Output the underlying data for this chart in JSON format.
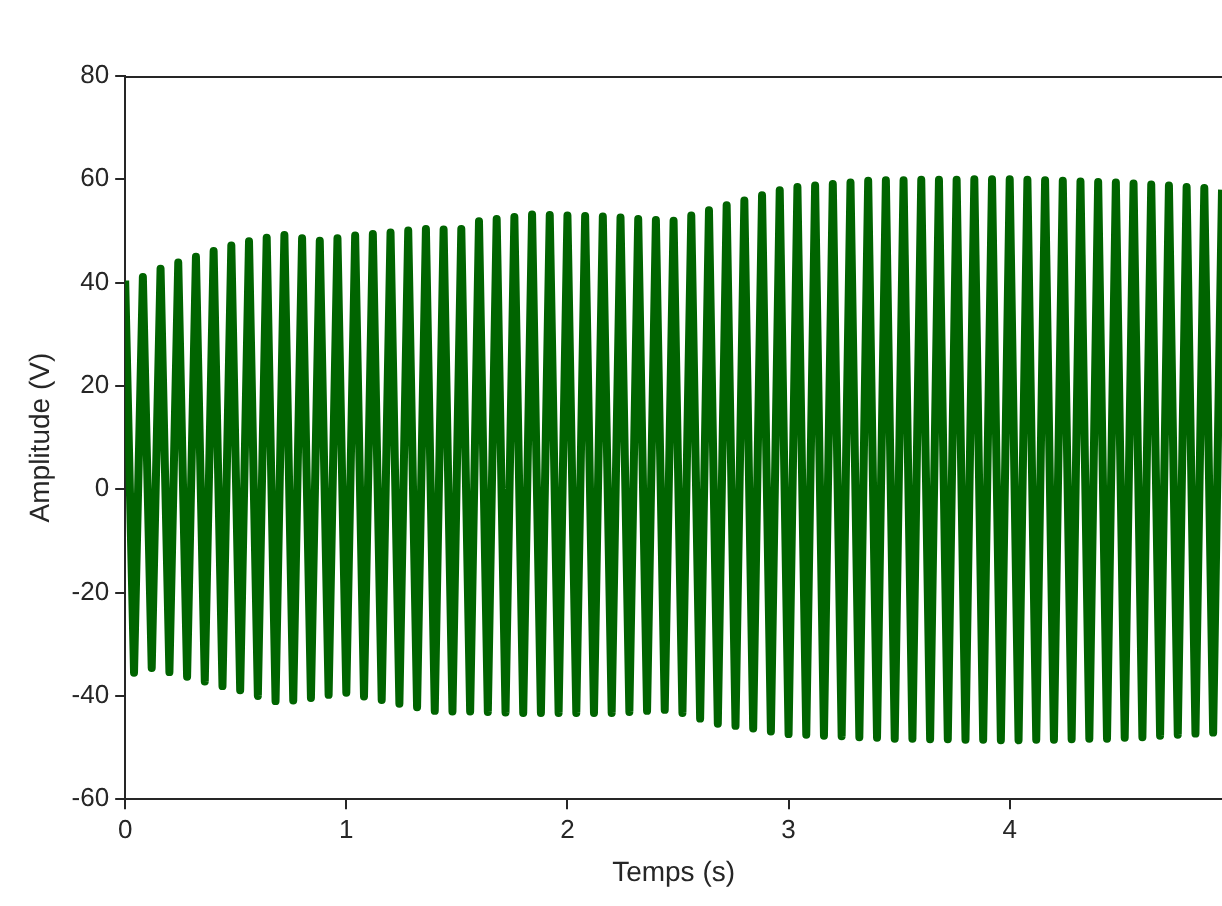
{
  "chart_data": {
    "type": "line",
    "xlabel": "Temps (s)",
    "ylabel": "Amplitude (V)",
    "xlim": [
      0,
      4.96
    ],
    "ylim": [
      -60,
      80
    ],
    "xticks": [
      0,
      1,
      2,
      3,
      4
    ],
    "yticks": [
      -60,
      -40,
      -20,
      0,
      20,
      40,
      60,
      80
    ],
    "x": [
      0,
      0.04,
      0.08,
      0.12,
      0.16,
      0.2,
      0.24,
      0.28,
      0.32,
      0.36,
      0.4,
      0.44,
      0.48,
      0.52,
      0.56,
      0.6,
      0.64,
      0.68,
      0.72,
      0.76,
      0.8,
      0.84,
      0.88,
      0.92,
      0.96,
      1,
      1.04,
      1.08,
      1.12,
      1.16,
      1.2,
      1.24,
      1.28,
      1.32,
      1.36,
      1.4,
      1.44,
      1.48,
      1.52,
      1.56,
      1.6,
      1.64,
      1.68,
      1.72,
      1.76,
      1.8,
      1.84,
      1.88,
      1.92,
      1.96,
      2,
      2.04,
      2.08,
      2.12,
      2.16,
      2.2,
      2.24,
      2.28,
      2.32,
      2.36,
      2.4,
      2.44,
      2.48,
      2.52,
      2.56,
      2.6,
      2.64,
      2.68,
      2.72,
      2.76,
      2.8,
      2.84,
      2.88,
      2.92,
      2.96,
      3,
      3.04,
      3.08,
      3.12,
      3.16,
      3.2,
      3.24,
      3.28,
      3.32,
      3.36,
      3.4,
      3.44,
      3.48,
      3.52,
      3.56,
      3.6,
      3.64,
      3.68,
      3.72,
      3.76,
      3.8,
      3.84,
      3.88,
      3.92,
      3.96,
      4,
      4.04,
      4.08,
      4.12,
      4.16,
      4.2,
      4.24,
      4.28,
      4.32,
      4.36,
      4.4,
      4.44,
      4.48,
      4.52,
      4.56,
      4.6,
      4.64,
      4.68,
      4.72,
      4.76,
      4.8,
      4.84,
      4.88,
      4.92,
      4.96
    ],
    "series": [
      {
        "color": "#006400",
        "values": [
          40.4,
          -35.5,
          41.1,
          -34.6,
          42.7,
          -35.4,
          43.9,
          -36.3,
          45.0,
          -37.2,
          46.1,
          -38.1,
          47.2,
          -38.9,
          48.0,
          -40.0,
          48.7,
          -41.0,
          49.2,
          -40.9,
          48.6,
          -40.4,
          48.1,
          -39.8,
          48.6,
          -39.4,
          49.1,
          -40.1,
          49.4,
          -40.8,
          49.7,
          -41.5,
          50.1,
          -42.2,
          50.4,
          -42.9,
          50.3,
          -43.0,
          50.4,
          -43.0,
          51.9,
          -43.1,
          52.3,
          -43.2,
          52.7,
          -43.3,
          53.2,
          -43.3,
          53.1,
          -43.3,
          53.0,
          -43.3,
          52.9,
          -43.3,
          52.8,
          -43.3,
          52.6,
          -43.1,
          52.3,
          -42.9,
          52.1,
          -42.7,
          52.0,
          -43.3,
          53.0,
          -44.4,
          54.0,
          -45.4,
          55.0,
          -45.8,
          55.9,
          -46.3,
          56.9,
          -46.9,
          57.9,
          -47.4,
          58.5,
          -47.5,
          58.8,
          -47.7,
          59.1,
          -47.8,
          59.4,
          -48.0,
          59.7,
          -48.1,
          59.8,
          -48.3,
          59.8,
          -48.3,
          59.9,
          -48.4,
          59.9,
          -48.4,
          59.9,
          -48.5,
          60.0,
          -48.5,
          60.0,
          -48.6,
          60.0,
          -48.6,
          59.9,
          -48.5,
          59.8,
          -48.5,
          59.7,
          -48.4,
          59.6,
          -48.3,
          59.5,
          -48.3,
          59.4,
          -48.1,
          59.2,
          -48.0,
          59.0,
          -47.7,
          58.8,
          -47.5,
          58.5,
          -47.3,
          58.3,
          -47.1,
          58.0
        ]
      }
    ]
  }
}
